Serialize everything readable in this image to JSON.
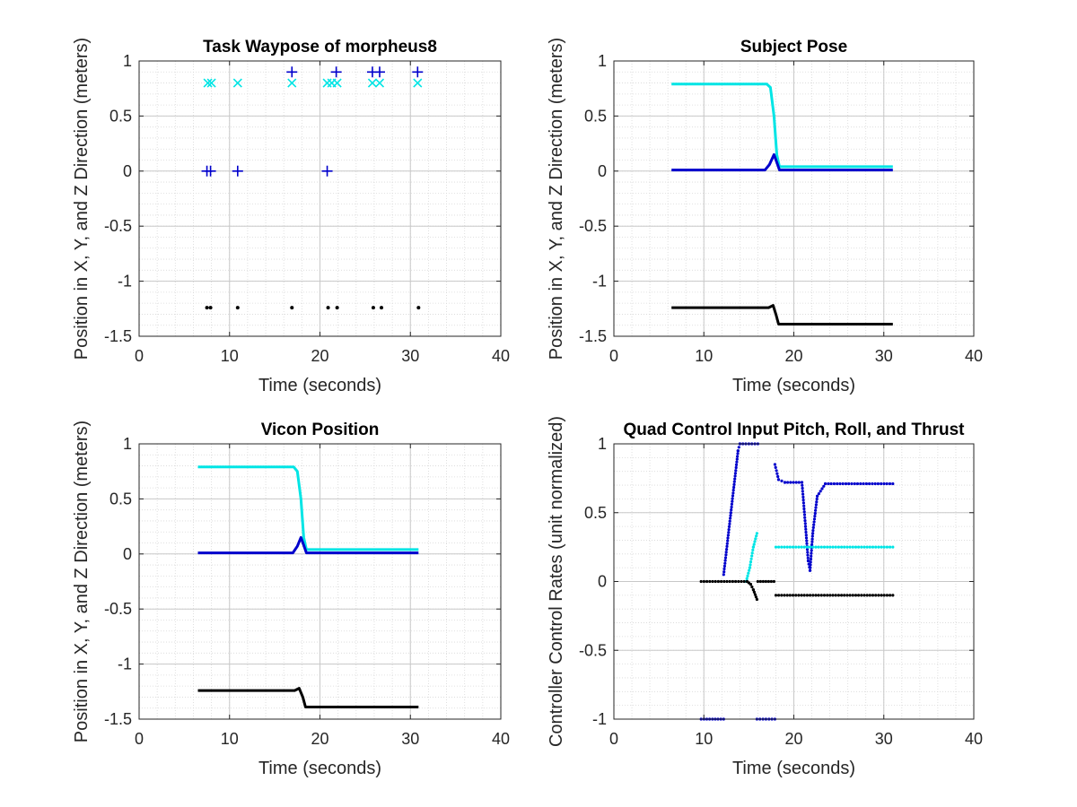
{
  "colors": {
    "blue": "#0000cc",
    "cyan": "#00e5e5",
    "black": "#000000",
    "grid": "#c8c8c8",
    "minor": "#d8d8d8"
  },
  "chart_data": [
    {
      "type": "scatter",
      "title": "Task Waypose of morpheus8",
      "xlabel": "Time (seconds)",
      "ylabel": "Position in X, Y, and Z Direction (meters)",
      "xlim": [
        0,
        40
      ],
      "ylim": [
        -1.5,
        1
      ],
      "xticks": [
        0,
        10,
        20,
        30,
        40
      ],
      "yticks": [
        1,
        0.5,
        0,
        -0.5,
        -1,
        -1.5
      ],
      "grid": true,
      "series": [
        {
          "marker": "plus",
          "color": "blue",
          "points": [
            [
              7.5,
              0
            ],
            [
              7.9,
              0
            ],
            [
              10.9,
              0
            ],
            [
              20.8,
              0
            ],
            [
              16.9,
              0.9
            ],
            [
              21.8,
              0.9
            ],
            [
              25.8,
              0.9
            ],
            [
              26.6,
              0.9
            ],
            [
              30.8,
              0.9
            ]
          ]
        },
        {
          "marker": "x",
          "color": "cyan",
          "points": [
            [
              7.6,
              0.8
            ],
            [
              8.0,
              0.8
            ],
            [
              10.9,
              0.8
            ],
            [
              16.9,
              0.8
            ],
            [
              20.8,
              0.8
            ],
            [
              21.3,
              0.8
            ],
            [
              21.9,
              0.8
            ],
            [
              25.8,
              0.8
            ],
            [
              26.6,
              0.8
            ],
            [
              30.8,
              0.8
            ]
          ]
        },
        {
          "marker": "dot",
          "color": "black",
          "points": [
            [
              7.5,
              -1.24
            ],
            [
              7.9,
              -1.24
            ],
            [
              10.9,
              -1.24
            ],
            [
              16.9,
              -1.24
            ],
            [
              20.9,
              -1.24
            ],
            [
              21.9,
              -1.24
            ],
            [
              25.9,
              -1.24
            ],
            [
              26.8,
              -1.24
            ],
            [
              30.9,
              -1.24
            ]
          ]
        }
      ]
    },
    {
      "type": "line",
      "title": "Subject Pose",
      "xlabel": "Time (seconds)",
      "ylabel": "Position in X, Y, and Z Direction (meters)",
      "xlim": [
        0,
        40
      ],
      "ylim": [
        -1.5,
        1
      ],
      "xticks": [
        0,
        10,
        20,
        30,
        40
      ],
      "yticks": [
        1,
        0.5,
        0,
        -0.5,
        -1,
        -1.5
      ],
      "grid": true,
      "series": [
        {
          "color": "cyan",
          "points": [
            [
              6.4,
              0.79
            ],
            [
              17.0,
              0.79
            ],
            [
              17.4,
              0.76
            ],
            [
              17.8,
              0.5
            ],
            [
              18.1,
              0.15
            ],
            [
              18.4,
              0.04
            ],
            [
              31,
              0.04
            ]
          ]
        },
        {
          "color": "blue",
          "points": [
            [
              6.4,
              0.01
            ],
            [
              16.8,
              0.01
            ],
            [
              17.3,
              0.06
            ],
            [
              17.8,
              0.15
            ],
            [
              18.1,
              0.08
            ],
            [
              18.4,
              0.01
            ],
            [
              31,
              0.01
            ]
          ]
        },
        {
          "color": "black",
          "points": [
            [
              6.4,
              -1.24
            ],
            [
              17.2,
              -1.24
            ],
            [
              17.7,
              -1.22
            ],
            [
              18.0,
              -1.3
            ],
            [
              18.3,
              -1.39
            ],
            [
              31,
              -1.39
            ]
          ]
        }
      ]
    },
    {
      "type": "line",
      "title": "Vicon Position",
      "xlabel": "Time (seconds)",
      "ylabel": "Position in X, Y, and Z Direction (meters)",
      "xlim": [
        0,
        40
      ],
      "ylim": [
        -1.5,
        1
      ],
      "xticks": [
        0,
        10,
        20,
        30,
        40
      ],
      "yticks": [
        1,
        0.5,
        0,
        -0.5,
        -1,
        -1.5
      ],
      "grid": true,
      "series": [
        {
          "color": "cyan",
          "points": [
            [
              6.5,
              0.79
            ],
            [
              17.1,
              0.79
            ],
            [
              17.5,
              0.75
            ],
            [
              17.9,
              0.5
            ],
            [
              18.2,
              0.15
            ],
            [
              18.5,
              0.04
            ],
            [
              30.9,
              0.04
            ]
          ]
        },
        {
          "color": "blue",
          "points": [
            [
              6.5,
              0.01
            ],
            [
              17.0,
              0.01
            ],
            [
              17.5,
              0.07
            ],
            [
              17.9,
              0.15
            ],
            [
              18.2,
              0.08
            ],
            [
              18.5,
              0.01
            ],
            [
              30.9,
              0.01
            ]
          ]
        },
        {
          "color": "black",
          "points": [
            [
              6.5,
              -1.24
            ],
            [
              17.2,
              -1.24
            ],
            [
              17.7,
              -1.22
            ],
            [
              18.1,
              -1.3
            ],
            [
              18.4,
              -1.39
            ],
            [
              30.9,
              -1.39
            ]
          ]
        }
      ]
    },
    {
      "type": "scatter",
      "title": "Quad Control Input Pitch, Roll, and Thrust",
      "xlabel": "Time (seconds)",
      "ylabel": "Controller Control Rates (unit normalized)",
      "xlim": [
        0,
        40
      ],
      "ylim": [
        -1,
        1
      ],
      "xticks": [
        0,
        10,
        20,
        30,
        40
      ],
      "yticks": [
        1,
        0.5,
        0,
        -0.5,
        -1
      ],
      "grid": true,
      "series": [
        {
          "color": "blue",
          "segments": [
            [
              [
                9.7,
                -1
              ],
              [
                12.2,
                -1
              ]
            ],
            [
              [
                12.2,
                0.05
              ],
              [
                13.0,
                0.5
              ],
              [
                13.8,
                0.95
              ],
              [
                14.0,
                1
              ],
              [
                16.0,
                1
              ]
            ],
            [
              [
                15.9,
                -1
              ],
              [
                17.9,
                -1
              ]
            ],
            [
              [
                17.9,
                0.85
              ],
              [
                18.3,
                0.74
              ],
              [
                19.0,
                0.72
              ],
              [
                20.9,
                0.72
              ],
              [
                21.3,
                0.4
              ],
              [
                21.6,
                0.15
              ],
              [
                21.8,
                0.08
              ],
              [
                22.1,
                0.35
              ],
              [
                22.6,
                0.62
              ],
              [
                23.5,
                0.71
              ],
              [
                31,
                0.71
              ]
            ]
          ]
        },
        {
          "color": "cyan",
          "segments": [
            [
              [
                14.7,
                0
              ],
              [
                15.1,
                0.1
              ],
              [
                15.5,
                0.25
              ],
              [
                15.9,
                0.35
              ]
            ],
            [
              [
                18.0,
                0.25
              ],
              [
                31,
                0.25
              ]
            ]
          ]
        },
        {
          "color": "black",
          "segments": [
            [
              [
                9.7,
                0
              ],
              [
                14.8,
                0
              ],
              [
                15.2,
                -0.02
              ],
              [
                15.5,
                -0.06
              ],
              [
                15.9,
                -0.13
              ]
            ],
            [
              [
                16.0,
                0
              ],
              [
                17.8,
                0
              ]
            ],
            [
              [
                18.0,
                -0.1
              ],
              [
                31,
                -0.1
              ]
            ]
          ]
        }
      ]
    }
  ]
}
